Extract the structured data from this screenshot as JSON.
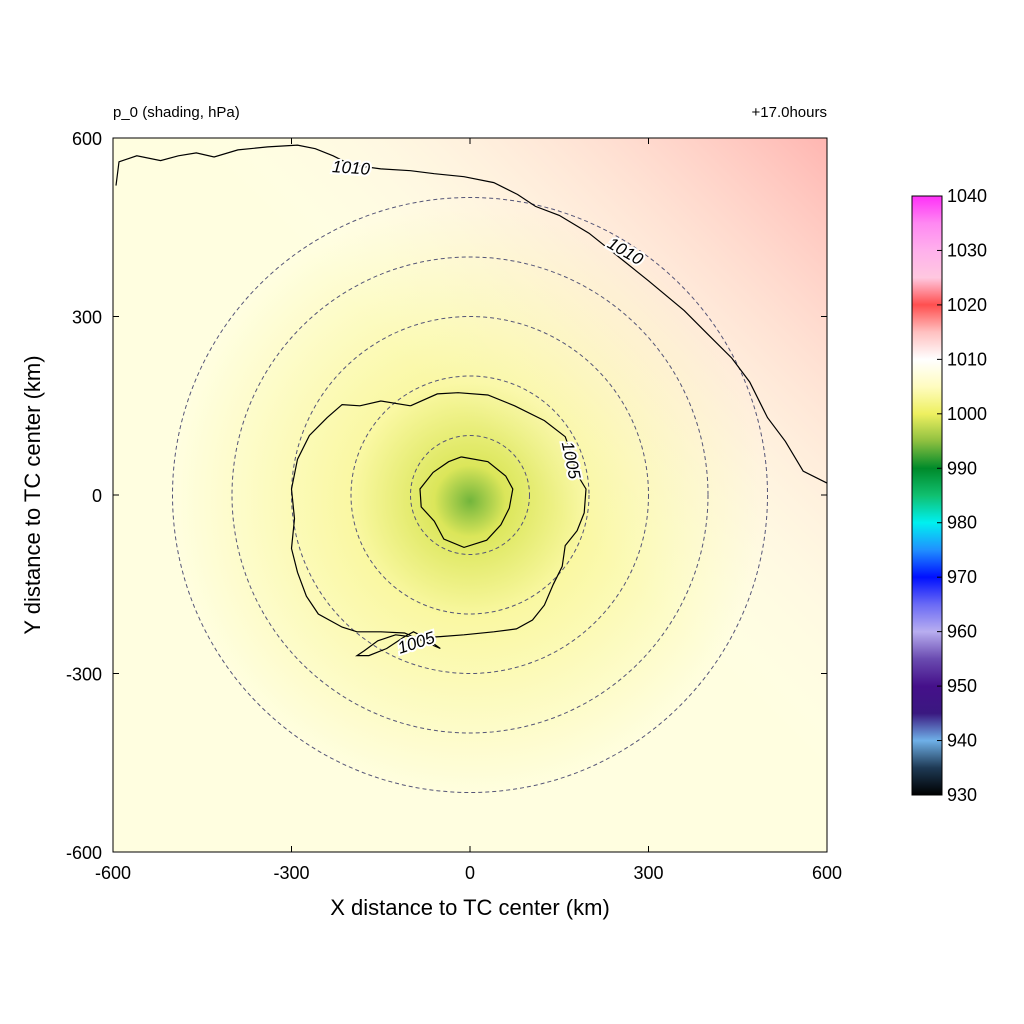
{
  "chart_data": {
    "type": "heatmap",
    "title": "p_0 (shading, hPa)",
    "time_label": "+17.0hours",
    "xlabel": "X distance to TC center (km)",
    "ylabel": "Y distance to TC center (km)",
    "xlim": [
      -600,
      600
    ],
    "ylim": [
      -600,
      600
    ],
    "x_ticks": [
      "-600",
      "-300",
      "0",
      "300",
      "600"
    ],
    "y_ticks": [
      "600",
      "300",
      "0",
      "-300",
      "-600"
    ],
    "x_tick_values": [
      -600,
      -300,
      0,
      300,
      600
    ],
    "y_tick_values": [
      600,
      300,
      0,
      -300,
      -600
    ],
    "colorbar": {
      "min": 930,
      "max": 1040,
      "ticks": [
        "1040",
        "1030",
        "1020",
        "1010",
        "1000",
        "990",
        "980",
        "970",
        "960",
        "950",
        "940",
        "930"
      ],
      "tick_values": [
        1040,
        1030,
        1020,
        1010,
        1000,
        990,
        980,
        970,
        960,
        950,
        940,
        930
      ],
      "stops": [
        {
          "value": 930,
          "color": "#000000"
        },
        {
          "value": 935,
          "color": "#1e3a55"
        },
        {
          "value": 940,
          "color": "#6fb0e8"
        },
        {
          "value": 945,
          "color": "#3a1880"
        },
        {
          "value": 950,
          "color": "#45108a"
        },
        {
          "value": 955,
          "color": "#6a4bb0"
        },
        {
          "value": 960,
          "color": "#b8aef0"
        },
        {
          "value": 965,
          "color": "#6a6af5"
        },
        {
          "value": 970,
          "color": "#0010ff"
        },
        {
          "value": 975,
          "color": "#2090ff"
        },
        {
          "value": 980,
          "color": "#00f0f0"
        },
        {
          "value": 985,
          "color": "#10c070"
        },
        {
          "value": 990,
          "color": "#008a2a"
        },
        {
          "value": 995,
          "color": "#8fc040"
        },
        {
          "value": 1000,
          "color": "#eef060"
        },
        {
          "value": 1005,
          "color": "#fffcc0"
        },
        {
          "value": 1010,
          "color": "#ffffff"
        },
        {
          "value": 1015,
          "color": "#ffc0c0"
        },
        {
          "value": 1020,
          "color": "#ff4f4f"
        },
        {
          "value": 1025,
          "color": "#ffc8e0"
        },
        {
          "value": 1030,
          "color": "#ffb0ec"
        },
        {
          "value": 1035,
          "color": "#ff88f2"
        },
        {
          "value": 1040,
          "color": "#ff30f8"
        }
      ]
    },
    "field": {
      "center_x": 0,
      "center_y": -10,
      "center_value": 994,
      "ring_radii": [
        60,
        200,
        500
      ],
      "ring_values": [
        999,
        1003.5,
        1007.5
      ],
      "northeast_corner_value": 1016,
      "southwest_corner_value": 1006
    },
    "contours": [
      {
        "level": 1005,
        "labels": [
          "1005",
          "1005"
        ]
      },
      {
        "level": 1010,
        "labels": [
          "1010",
          "1010"
        ]
      },
      {
        "level": 995
      }
    ],
    "range_rings_km": [
      100,
      200,
      300,
      400,
      500
    ],
    "contour_paths_km": {
      "c995": [
        [
          -15,
          64
        ],
        [
          30,
          56
        ],
        [
          60,
          32
        ],
        [
          72,
          10
        ],
        [
          66,
          -22
        ],
        [
          52,
          -50
        ],
        [
          28,
          -76
        ],
        [
          -10,
          -88
        ],
        [
          -44,
          -74
        ],
        [
          -60,
          -44
        ],
        [
          -82,
          -20
        ],
        [
          -84,
          10
        ],
        [
          -62,
          38
        ],
        [
          -36,
          56
        ],
        [
          -15,
          64
        ]
      ],
      "c1005": [
        [
          -100,
          150
        ],
        [
          -55,
          170
        ],
        [
          -20,
          172
        ],
        [
          30,
          168
        ],
        [
          75,
          150
        ],
        [
          125,
          125
        ],
        [
          160,
          98
        ],
        [
          170,
          70
        ],
        [
          178,
          38
        ],
        [
          195,
          10
        ],
        [
          192,
          -30
        ],
        [
          180,
          -60
        ],
        [
          160,
          -85
        ],
        [
          155,
          -120
        ],
        [
          140,
          -150
        ],
        [
          125,
          -185
        ],
        [
          105,
          -210
        ],
        [
          78,
          -225
        ],
        [
          40,
          -230
        ],
        [
          -10,
          -235
        ],
        [
          -50,
          -238
        ],
        [
          -85,
          -240
        ],
        [
          -125,
          -235
        ],
        [
          -155,
          -245
        ],
        [
          -178,
          -262
        ],
        [
          -190,
          -270
        ],
        [
          -170,
          -270
        ],
        [
          -140,
          -258
        ],
        [
          -110,
          -238
        ],
        [
          -95,
          -230
        ],
        [
          -75,
          -240
        ],
        [
          -50,
          -258
        ],
        [
          -110,
          -232
        ],
        [
          -150,
          -230
        ],
        [
          -190,
          -230
        ],
        [
          -215,
          -222
        ],
        [
          -255,
          -200
        ],
        [
          -275,
          -170
        ],
        [
          -290,
          -130
        ],
        [
          -300,
          -90
        ],
        [
          -295,
          -40
        ],
        [
          -300,
          10
        ],
        [
          -290,
          60
        ],
        [
          -270,
          100
        ],
        [
          -240,
          130
        ],
        [
          -215,
          152
        ],
        [
          -185,
          150
        ],
        [
          -150,
          158
        ],
        [
          -100,
          150
        ]
      ],
      "c1010": [
        [
          -595,
          520
        ],
        [
          -590,
          560
        ],
        [
          -560,
          570
        ],
        [
          -520,
          562
        ],
        [
          -490,
          570
        ],
        [
          -460,
          575
        ],
        [
          -430,
          568
        ],
        [
          -390,
          580
        ],
        [
          -340,
          585
        ],
        [
          -290,
          588
        ],
        [
          -260,
          582
        ],
        [
          -230,
          570
        ],
        [
          -200,
          555
        ],
        [
          -150,
          548
        ],
        [
          -100,
          545
        ],
        [
          -60,
          540
        ],
        [
          -10,
          535
        ],
        [
          40,
          525
        ],
        [
          80,
          505
        ],
        [
          110,
          485
        ],
        [
          150,
          470
        ],
        [
          200,
          440
        ],
        [
          250,
          400
        ],
        [
          300,
          360
        ],
        [
          360,
          310
        ],
        [
          400,
          270
        ],
        [
          440,
          230
        ],
        [
          470,
          190
        ],
        [
          500,
          130
        ],
        [
          530,
          90
        ],
        [
          560,
          40
        ],
        [
          600,
          20
        ]
      ]
    },
    "contour_label_positions_km": [
      {
        "text": "1010",
        "x": -200,
        "y": 548,
        "angle": 4
      },
      {
        "text": "1010",
        "x": 260,
        "y": 408,
        "angle": 30
      },
      {
        "text": "1005",
        "x": 168,
        "y": 58,
        "angle": 78
      },
      {
        "text": "1005",
        "x": -90,
        "y": -250,
        "angle": -18
      }
    ]
  }
}
